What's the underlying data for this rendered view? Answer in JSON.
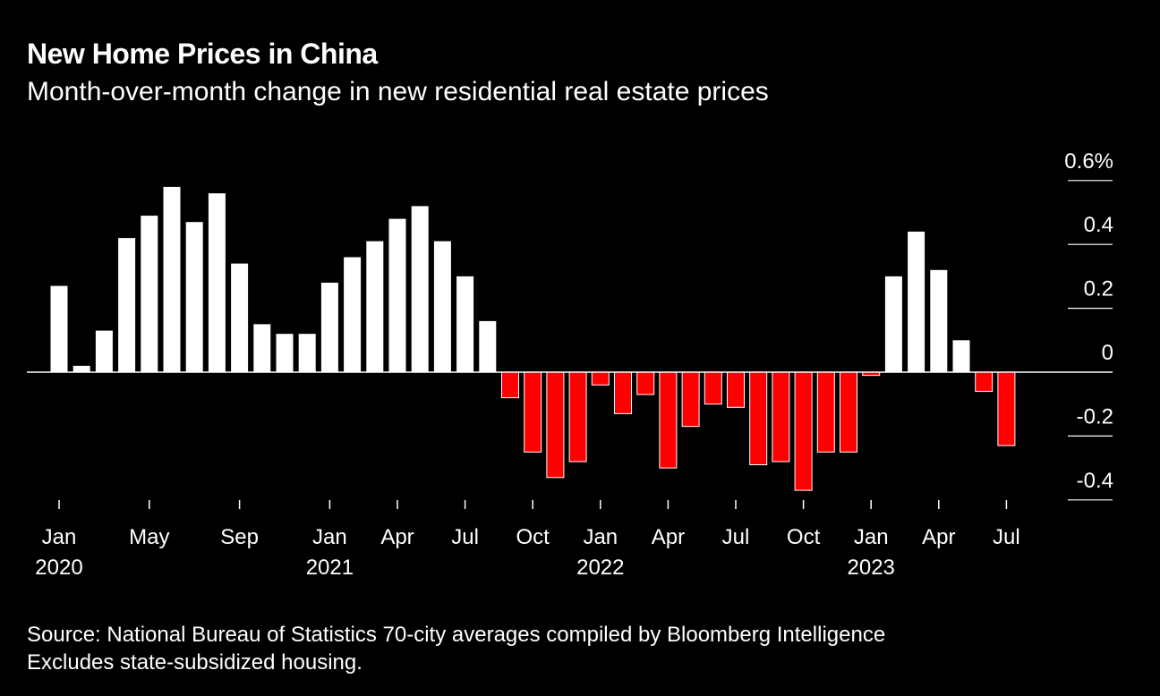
{
  "title": "New Home Prices in China",
  "subtitle": "Month-over-month change in new residential real estate prices",
  "source": [
    "Source: National Bureau of Statistics 70-city averages compiled by Bloomberg Intelligence",
    "Excludes state-subsidized housing."
  ],
  "colors": {
    "positive": "#ffffff",
    "negative": "#ff0000",
    "background": "#000000"
  },
  "chart_data": {
    "type": "bar",
    "categories": [
      "2020-01",
      "2020-02",
      "2020-03",
      "2020-04",
      "2020-05",
      "2020-06",
      "2020-07",
      "2020-08",
      "2020-09",
      "2020-10",
      "2020-11",
      "2020-12",
      "2021-01",
      "2021-02",
      "2021-03",
      "2021-04",
      "2021-05",
      "2021-06",
      "2021-07",
      "2021-08",
      "2021-09",
      "2021-10",
      "2021-11",
      "2021-12",
      "2022-01",
      "2022-02",
      "2022-03",
      "2022-04",
      "2022-05",
      "2022-06",
      "2022-07",
      "2022-08",
      "2022-09",
      "2022-10",
      "2022-11",
      "2022-12",
      "2023-01",
      "2023-02",
      "2023-03",
      "2023-04",
      "2023-05",
      "2023-06",
      "2023-07"
    ],
    "values": [
      0.27,
      0.02,
      0.13,
      0.42,
      0.49,
      0.58,
      0.47,
      0.56,
      0.34,
      0.15,
      0.12,
      0.12,
      0.28,
      0.36,
      0.41,
      0.48,
      0.52,
      0.41,
      0.3,
      0.16,
      -0.08,
      -0.25,
      -0.33,
      -0.28,
      -0.04,
      -0.13,
      -0.07,
      -0.3,
      -0.17,
      -0.1,
      -0.11,
      -0.29,
      -0.28,
      -0.37,
      -0.25,
      -0.25,
      -0.01,
      0.3,
      0.44,
      0.32,
      0.1,
      -0.06,
      -0.23
    ],
    "ylim": [
      -0.4,
      0.6
    ],
    "yticks": [
      {
        "value": 0.6,
        "label": "0.6%"
      },
      {
        "value": 0.4,
        "label": "0.4"
      },
      {
        "value": 0.2,
        "label": "0.2"
      },
      {
        "value": 0,
        "label": "0"
      },
      {
        "value": -0.2,
        "label": "-0.2"
      },
      {
        "value": -0.4,
        "label": "-0.4"
      }
    ],
    "xticks": [
      {
        "index": 0,
        "month": "Jan",
        "year": "2020"
      },
      {
        "index": 4,
        "month": "May",
        "year": ""
      },
      {
        "index": 8,
        "month": "Sep",
        "year": ""
      },
      {
        "index": 12,
        "month": "Jan",
        "year": "2021"
      },
      {
        "index": 15,
        "month": "Apr",
        "year": ""
      },
      {
        "index": 18,
        "month": "Jul",
        "year": ""
      },
      {
        "index": 21,
        "month": "Oct",
        "year": ""
      },
      {
        "index": 24,
        "month": "Jan",
        "year": "2022"
      },
      {
        "index": 27,
        "month": "Apr",
        "year": ""
      },
      {
        "index": 30,
        "month": "Jul",
        "year": ""
      },
      {
        "index": 33,
        "month": "Oct",
        "year": ""
      },
      {
        "index": 36,
        "month": "Jan",
        "year": "2023"
      },
      {
        "index": 39,
        "month": "Apr",
        "year": ""
      },
      {
        "index": 42,
        "month": "Jul",
        "year": ""
      }
    ]
  }
}
